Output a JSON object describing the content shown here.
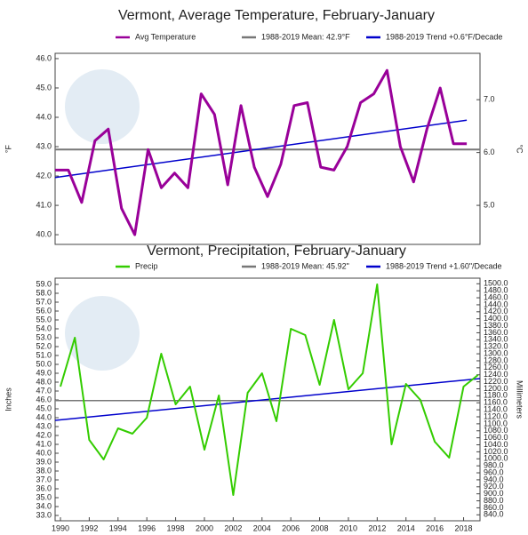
{
  "chart_data": [
    {
      "type": "line",
      "title": "Vermont, Average Temperature, February-January",
      "ylabel": "°F",
      "y2label": "°C",
      "xlim": [
        1988,
        2020
      ],
      "ylim": [
        39.67,
        46.18
      ],
      "y2lim": [
        4.261,
        7.878
      ],
      "yticks": [
        {
          "value": 40,
          "label": "40.0"
        },
        {
          "value": 41,
          "label": "41.0"
        },
        {
          "value": 42,
          "label": "42.0"
        },
        {
          "value": 43,
          "label": "43.0"
        },
        {
          "value": 44,
          "label": "44.0"
        },
        {
          "value": 45,
          "label": "45.0"
        },
        {
          "value": 46,
          "label": "46.0"
        }
      ],
      "y2ticks": [
        {
          "value": 5,
          "label": "5.0"
        },
        {
          "value": 6,
          "label": "6.0"
        },
        {
          "value": 7,
          "label": "7.0"
        }
      ],
      "series": [
        {
          "name": "Avg Temperature",
          "color": "#990099",
          "width": 3,
          "x": [
            1988,
            1989,
            1990,
            1991,
            1992,
            1993,
            1994,
            1995,
            1996,
            1997,
            1998,
            1999,
            2000,
            2001,
            2002,
            2003,
            2004,
            2005,
            2006,
            2007,
            2008,
            2009,
            2010,
            2011,
            2012,
            2013,
            2014,
            2015,
            2016,
            2017,
            2018,
            2019
          ],
          "values": [
            42.2,
            42.2,
            41.1,
            43.2,
            43.6,
            40.9,
            40.0,
            42.9,
            41.6,
            42.1,
            41.6,
            44.8,
            44.1,
            41.7,
            44.4,
            42.3,
            41.3,
            42.4,
            44.4,
            44.5,
            42.3,
            42.2,
            43.0,
            44.5,
            44.8,
            45.6,
            43.0,
            41.8,
            43.6,
            45.0,
            43.1,
            43.1
          ]
        },
        {
          "name": "1988-2019 Mean: 42.9°F",
          "color": "#777777",
          "width": 2,
          "x": [
            1988,
            2020
          ],
          "values": [
            42.9,
            42.9
          ]
        },
        {
          "name": "1988-2019 Trend +0.6°F/Decade",
          "color": "#0000cc",
          "width": 1.5,
          "x": [
            1988,
            2019
          ],
          "values": [
            41.95,
            43.9
          ]
        }
      ]
    },
    {
      "type": "line",
      "title": "Vermont, Precipitation, February-January",
      "ylabel": "Inches",
      "y2label": "Millimeters",
      "xlim": [
        1989.63,
        2019.14
      ],
      "ylim": [
        32.4,
        59.7
      ],
      "y2lim": [
        823,
        1516
      ],
      "xticks": [
        1990,
        1992,
        1994,
        1996,
        1998,
        2000,
        2002,
        2004,
        2006,
        2008,
        2010,
        2012,
        2014,
        2016,
        2018
      ],
      "yticks": [
        {
          "value": 33,
          "label": "33.0"
        },
        {
          "value": 34,
          "label": "34.0"
        },
        {
          "value": 35,
          "label": "35.0"
        },
        {
          "value": 36,
          "label": "36.0"
        },
        {
          "value": 37,
          "label": "37.0"
        },
        {
          "value": 38,
          "label": "38.0"
        },
        {
          "value": 39,
          "label": "39.0"
        },
        {
          "value": 40,
          "label": "40.0"
        },
        {
          "value": 41,
          "label": "41.0"
        },
        {
          "value": 42,
          "label": "42.0"
        },
        {
          "value": 43,
          "label": "43.0"
        },
        {
          "value": 44,
          "label": "44.0"
        },
        {
          "value": 45,
          "label": "45.0"
        },
        {
          "value": 46,
          "label": "46.0"
        },
        {
          "value": 47,
          "label": "47.0"
        },
        {
          "value": 48,
          "label": "48.0"
        },
        {
          "value": 49,
          "label": "49.0"
        },
        {
          "value": 50,
          "label": "50.0"
        },
        {
          "value": 51,
          "label": "51.0"
        },
        {
          "value": 52,
          "label": "52.0"
        },
        {
          "value": 53,
          "label": "53.0"
        },
        {
          "value": 54,
          "label": "54.0"
        },
        {
          "value": 55,
          "label": "55.0"
        },
        {
          "value": 56,
          "label": "56.0"
        },
        {
          "value": 57,
          "label": "57.0"
        },
        {
          "value": 58,
          "label": "58.0"
        },
        {
          "value": 59,
          "label": "59.0"
        }
      ],
      "y2ticks": [
        {
          "value": 840,
          "label": "840.0"
        },
        {
          "value": 860,
          "label": "860.0"
        },
        {
          "value": 880,
          "label": "880.0"
        },
        {
          "value": 900,
          "label": "900.0"
        },
        {
          "value": 920,
          "label": "920.0"
        },
        {
          "value": 940,
          "label": "940.0"
        },
        {
          "value": 960,
          "label": "960.0"
        },
        {
          "value": 980,
          "label": "980.0"
        },
        {
          "value": 1000,
          "label": "1000.0"
        },
        {
          "value": 1020,
          "label": "1020.0"
        },
        {
          "value": 1040,
          "label": "1040.0"
        },
        {
          "value": 1060,
          "label": "1060.0"
        },
        {
          "value": 1080,
          "label": "1080.0"
        },
        {
          "value": 1100,
          "label": "1100.0"
        },
        {
          "value": 1120,
          "label": "1120.0"
        },
        {
          "value": 1140,
          "label": "1140.0"
        },
        {
          "value": 1160,
          "label": "1160.0"
        },
        {
          "value": 1180,
          "label": "1180.0"
        },
        {
          "value": 1200,
          "label": "1200.0"
        },
        {
          "value": 1220,
          "label": "1220.0"
        },
        {
          "value": 1240,
          "label": "1240.0"
        },
        {
          "value": 1260,
          "label": "1260.0"
        },
        {
          "value": 1280,
          "label": "1280.0"
        },
        {
          "value": 1300,
          "label": "1300.0"
        },
        {
          "value": 1320,
          "label": "1320.0"
        },
        {
          "value": 1340,
          "label": "1340.0"
        },
        {
          "value": 1360,
          "label": "1360.0"
        },
        {
          "value": 1380,
          "label": "1380.0"
        },
        {
          "value": 1400,
          "label": "1400.0"
        },
        {
          "value": 1420,
          "label": "1420.0"
        },
        {
          "value": 1440,
          "label": "1440.0"
        },
        {
          "value": 1460,
          "label": "1460.0"
        },
        {
          "value": 1480,
          "label": "1480.0"
        },
        {
          "value": 1500,
          "label": "1500.0"
        }
      ],
      "series": [
        {
          "name": "Precip",
          "color": "#33cc00",
          "width": 2,
          "x": [
            1990,
            1991,
            1992,
            1993,
            1994,
            1995,
            1996,
            1997,
            1998,
            1999,
            2000,
            2001,
            2002,
            2003,
            2004,
            2005,
            2006,
            2007,
            2008,
            2009,
            2010,
            2011,
            2012,
            2013,
            2014,
            2015,
            2016,
            2017,
            2018,
            2019
          ],
          "values": [
            47.5,
            53,
            41.5,
            39.3,
            42.8,
            42.2,
            44,
            51.2,
            45.5,
            47.5,
            40.4,
            46.5,
            35.3,
            46.8,
            49,
            43.6,
            54,
            53.3,
            47.7,
            55,
            47.2,
            49,
            59,
            41,
            47.8,
            46,
            41.3,
            39.5,
            47.5,
            48.8
          ]
        },
        {
          "name": "1988-2019 Mean: 45.92\"",
          "color": "#777777",
          "width": 1.5,
          "x": [
            1989.63,
            2019.14
          ],
          "values": [
            45.92,
            45.92
          ]
        },
        {
          "name": "1988-2019 Trend +1.60\"/Decade",
          "color": "#0000cc",
          "width": 1.5,
          "x": [
            1989.63,
            2019.14
          ],
          "values": [
            43.7,
            48.4
          ]
        }
      ]
    }
  ]
}
